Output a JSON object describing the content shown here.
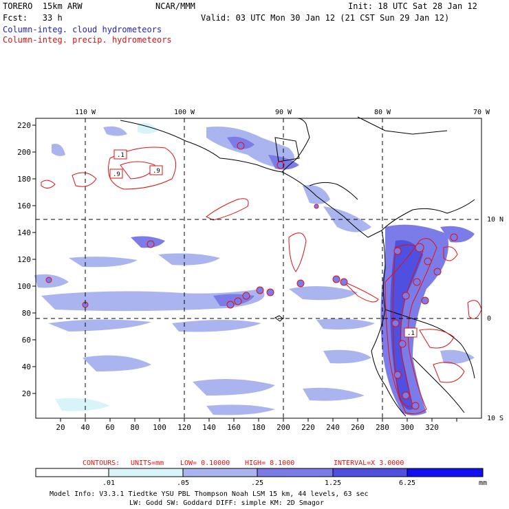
{
  "header": {
    "model": "TORERO  15km ARW",
    "org": "NCAR/MMM",
    "init": "Init: 18 UTC Sat 28 Jan 12",
    "fcst": "Fcst:   33 h",
    "valid": "Valid: 03 UTC Mon 30 Jan 12 (21 CST Sun 29 Jan 12)",
    "legend_cloud": "Column-integ. cloud hydrometeors",
    "legend_precip": "Column-integ. precip. hydrometeors"
  },
  "colors": {
    "cloud_text": "#2020c8",
    "precip_text": "#e01010",
    "shade_1": "#d8f4f8",
    "shade_2": "#aab4ee",
    "shade_3": "#7c7ce8",
    "shade_4": "#5050e0",
    "shade_5": "#1010f0"
  },
  "map": {
    "lon_labels": [
      "110 W",
      "100 W",
      "90 W",
      "80 W",
      "70 W"
    ],
    "lat_labels": [
      "10 N",
      "0",
      "10 S"
    ],
    "y_ticks": [
      "220",
      "200",
      "180",
      "160",
      "140",
      "120",
      "100",
      "80",
      "60",
      "40",
      "20"
    ],
    "x_ticks": [
      "20",
      "40",
      "60",
      "80",
      "100",
      "120",
      "140",
      "160",
      "180",
      "200",
      "220",
      "240",
      "260",
      "280",
      "300",
      "320"
    ],
    "contour_labels": [
      ".1",
      ".9",
      ".9",
      ".1"
    ]
  },
  "contours_text": {
    "label": "CONTOURS:",
    "units": "UNITS=mm",
    "low": "LOW= 0.10000",
    "high": "HIGH=  8.1000",
    "interval": "INTERVAL=X  3.0000"
  },
  "colorbar": {
    "labels": [
      ".01",
      ".05",
      ".25",
      "1.25",
      "6.25"
    ],
    "unit": "mm"
  },
  "footer": {
    "line1": "Model Info: V3.3.1   Tiedtke YSU PBL  Thompson    Noah LSM  15 km,   44 levels,   63 sec",
    "line2": "LW: Godd SW: Goddard DIFF: simple KM: 2D Smagor"
  }
}
